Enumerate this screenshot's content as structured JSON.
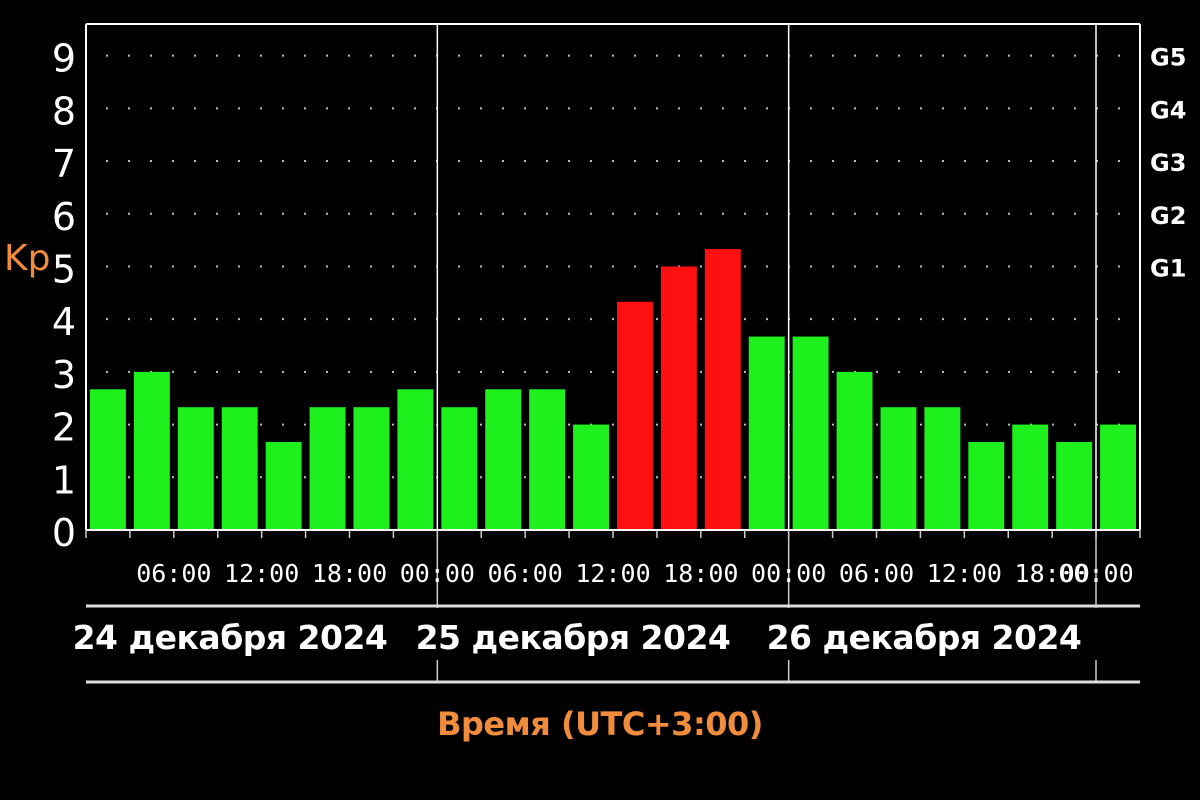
{
  "chart_data": {
    "type": "bar",
    "ylabel": "Kp",
    "xlabel": "Время (UTC+3:00)",
    "ylim": [
      0,
      9.6
    ],
    "y_ticks": [
      "0",
      "1",
      "2",
      "3",
      "4",
      "5",
      "6",
      "7",
      "8",
      "9"
    ],
    "g_scale": [
      {
        "label": "G1",
        "kp": 5
      },
      {
        "label": "G2",
        "kp": 6
      },
      {
        "label": "G3",
        "kp": 7
      },
      {
        "label": "G4",
        "kp": 8
      },
      {
        "label": "G5",
        "kp": 9
      }
    ],
    "time_ticks": [
      "06:00",
      "12:00",
      "18:00",
      "00:00",
      "06:00",
      "12:00",
      "18:00",
      "00:00",
      "06:00",
      "12:00",
      "18:00",
      "00:00"
    ],
    "days": [
      "24 декабря 2024",
      "25 декабря 2024",
      "26 декабря 2024"
    ],
    "values": [
      2.67,
      3.0,
      2.33,
      2.33,
      1.67,
      2.33,
      2.33,
      2.67,
      2.33,
      2.67,
      2.67,
      2.0,
      4.33,
      5.0,
      5.33,
      3.67,
      3.67,
      3.0,
      2.33,
      2.33,
      1.67,
      2.0,
      1.67,
      2.0
    ],
    "storm_threshold": 5,
    "grid": "dotted",
    "colors": {
      "quiet": "#1df01d",
      "storm": "#ff1010",
      "axis": "#ffffff",
      "label_accent": "#f08c3c",
      "background": "#000000"
    }
  }
}
